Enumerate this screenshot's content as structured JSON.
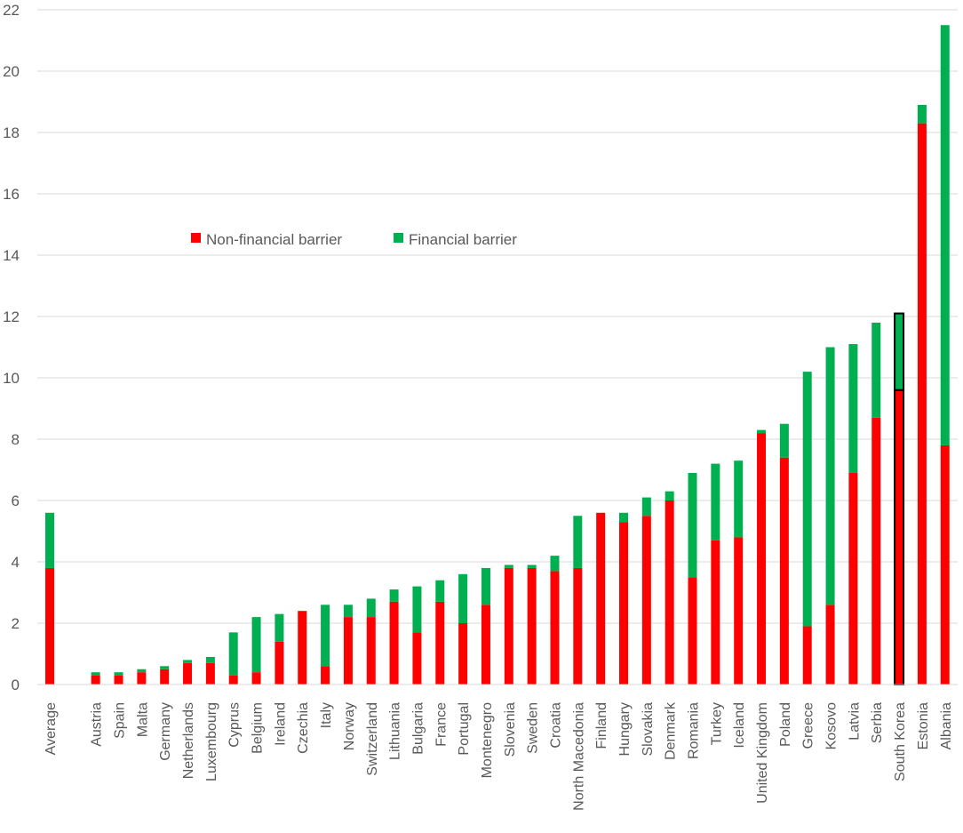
{
  "chart_data": {
    "type": "bar",
    "stacked": true,
    "categories": [
      "Average",
      "",
      "Austria",
      "Spain",
      "Malta",
      "Germany",
      "Netherlands",
      "Luxembourg",
      "Cyprus",
      "Belgium",
      "Ireland",
      "Czechia",
      "Italy",
      "Norway",
      "Switzerland",
      "Lithuania",
      "Bulgaria",
      "France",
      "Portugal",
      "Montenegro",
      "Slovenia",
      "Sweden",
      "Croatia",
      "North Macedonia",
      "Finland",
      "Hungary",
      "Slovakia",
      "Denmark",
      "Romania",
      "Turkey",
      "Iceland",
      "United Kingdom",
      "Poland",
      "Greece",
      "Kosovo",
      "Latvia",
      "Serbia",
      "South Korea",
      "Estonia",
      "Albania"
    ],
    "series": [
      {
        "name": "Non-financial barrier",
        "color": "#ff0000",
        "values": [
          3.8,
          null,
          0.3,
          0.3,
          0.4,
          0.5,
          0.7,
          0.7,
          0.3,
          0.4,
          1.4,
          2.4,
          0.6,
          2.2,
          2.2,
          2.7,
          1.7,
          2.7,
          2.0,
          2.6,
          3.8,
          3.8,
          3.7,
          3.8,
          5.6,
          5.3,
          5.5,
          6.0,
          3.5,
          4.7,
          4.8,
          8.2,
          7.4,
          1.9,
          2.6,
          6.9,
          8.7,
          9.6,
          18.3,
          7.8
        ]
      },
      {
        "name": "Financial barrier",
        "color": "#00b050",
        "values": [
          1.8,
          null,
          0.1,
          0.1,
          0.1,
          0.1,
          0.1,
          0.2,
          1.4,
          1.8,
          0.9,
          0.0,
          2.0,
          0.4,
          0.6,
          0.4,
          1.5,
          0.7,
          1.6,
          1.2,
          0.1,
          0.1,
          0.5,
          1.7,
          0.0,
          0.3,
          0.6,
          0.3,
          3.4,
          2.5,
          2.5,
          0.1,
          1.1,
          8.3,
          8.4,
          4.2,
          3.1,
          2.5,
          0.6,
          13.7
        ]
      }
    ],
    "highlighted_category": "South Korea",
    "ylim": [
      0,
      22
    ],
    "yticks": [
      0,
      2,
      4,
      6,
      8,
      10,
      12,
      14,
      16,
      18,
      20,
      22
    ],
    "grid": true,
    "legend_position": "upper-left-inside",
    "title": "",
    "xlabel": "",
    "ylabel": ""
  }
}
